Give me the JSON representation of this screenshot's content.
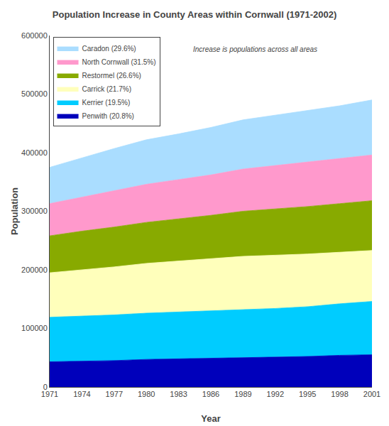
{
  "chart_data": {
    "type": "area",
    "stacked": true,
    "title": "Population Increase in County Areas within Cornwall (1971-2002)",
    "xlabel": "Year",
    "ylabel": "Population",
    "annotation": "Increase is populations across all areas",
    "x": [
      1971,
      1974,
      1977,
      1980,
      1983,
      1986,
      1989,
      1992,
      1995,
      1998,
      2001
    ],
    "series": [
      {
        "name": "Penwith (20.8%)",
        "color": "#0000BB",
        "values": [
          43000,
          44000,
          45000,
          47000,
          48000,
          49000,
          50000,
          51000,
          52000,
          54000,
          55000
        ]
      },
      {
        "name": "Kerrier (19.5%)",
        "color": "#00CCFF",
        "values": [
          76000,
          77000,
          78000,
          79000,
          80000,
          81000,
          82000,
          83000,
          85000,
          88000,
          91000
        ]
      },
      {
        "name": "Carrick (21.7%)",
        "color": "#FFFFBB",
        "values": [
          76000,
          79000,
          82000,
          85000,
          87000,
          89000,
          91000,
          91000,
          90000,
          88000,
          87000
        ]
      },
      {
        "name": "Restormel (26.6%)",
        "color": "#88AA00",
        "values": [
          63000,
          66000,
          68000,
          70000,
          72000,
          74000,
          77000,
          79000,
          81000,
          83000,
          85000
        ]
      },
      {
        "name": "North Cornwall (31.5%)",
        "color": "#FF99CC",
        "values": [
          55000,
          58000,
          62000,
          65000,
          67000,
          69000,
          72000,
          74000,
          76000,
          77000,
          78000
        ]
      },
      {
        "name": "Caradon (29.6%)",
        "color": "#AADDFF",
        "values": [
          62000,
          67000,
          72000,
          76000,
          78000,
          81000,
          84000,
          86000,
          88000,
          90000,
          94000
        ]
      }
    ],
    "xlim": [
      1971,
      2001
    ],
    "xticks": [
      1971,
      1974,
      1977,
      1980,
      1983,
      1986,
      1989,
      1992,
      1995,
      1998,
      2001
    ],
    "ylim": [
      0,
      600000
    ],
    "yticks": [
      0,
      100000,
      200000,
      300000,
      400000,
      500000,
      600000
    ],
    "legend": "upper left",
    "grid": false
  }
}
